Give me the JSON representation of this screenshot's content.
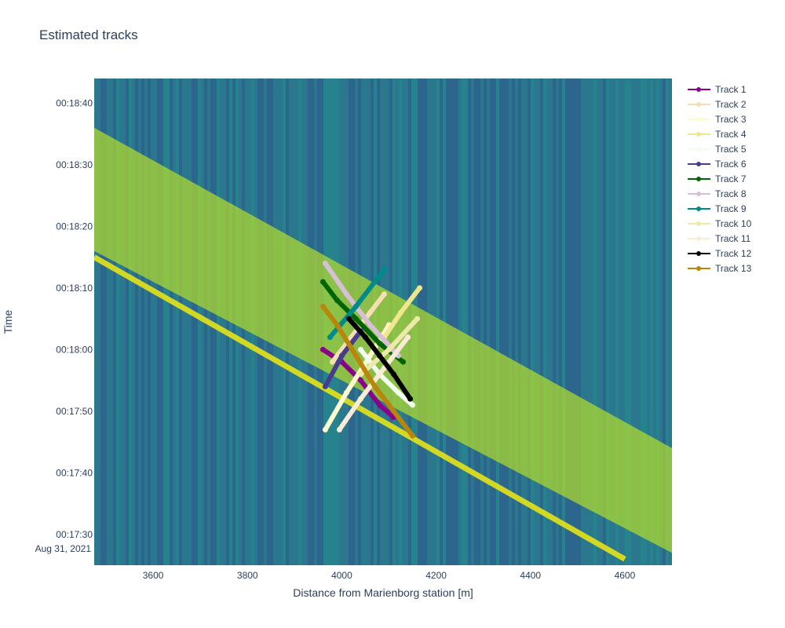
{
  "chart_data": {
    "type": "line",
    "title": "Estimated tracks",
    "xlabel": "Distance from Marienborg station [m]",
    "ylabel": "Time",
    "xlim": [
      3475,
      4700
    ],
    "ylim": [
      "00:17:25",
      "00:18:44"
    ],
    "x_ticks": [
      3600,
      3800,
      4000,
      4200,
      4400,
      4600
    ],
    "y_ticks": [
      "00:17:30",
      "00:17:40",
      "00:17:50",
      "00:18:00",
      "00:18:10",
      "00:18:20",
      "00:18:30",
      "00:18:40"
    ],
    "y_date_label": "Aug 31, 2021",
    "legend_position": "top-right",
    "background": "heatmap",
    "colorscale": [
      "#2e5e8a",
      "#2a7d8c",
      "#21918c",
      "#5ec962",
      "#b5de2b",
      "#e6e418"
    ],
    "background_bands": [
      {
        "name": "bright line",
        "x": [
          3475,
          4600
        ],
        "y": [
          "00:18:15",
          "00:17:26"
        ]
      },
      {
        "name": "upper band top edge",
        "x": [
          3475,
          4700
        ],
        "y": [
          "00:18:36",
          "00:17:44"
        ]
      },
      {
        "name": "upper band bottom edge",
        "x": [
          3475,
          4700
        ],
        "y": [
          "00:18:16",
          "00:17:27"
        ]
      }
    ],
    "series": [
      {
        "name": "Track 1",
        "color": "#8b008b",
        "x": [
          3960,
          4000,
          4040,
          4080,
          4110
        ],
        "y": [
          "00:18:00",
          "00:17:58",
          "00:17:55",
          "00:17:51",
          "00:17:49"
        ]
      },
      {
        "name": "Track 2",
        "color": "#f5deb3",
        "x": [
          3980,
          4020,
          4060,
          4090
        ],
        "y": [
          "00:17:58",
          "00:18:02",
          "00:18:06",
          "00:18:09"
        ]
      },
      {
        "name": "Track 3",
        "color": "#fffacd",
        "x": [
          3965,
          4010,
          4060,
          4100
        ],
        "y": [
          "00:17:47",
          "00:17:53",
          "00:17:59",
          "00:18:04"
        ]
      },
      {
        "name": "Track 4",
        "color": "#f0e68c",
        "x": [
          4090,
          4125,
          4165
        ],
        "y": [
          "00:18:02",
          "00:18:06",
          "00:18:10"
        ]
      },
      {
        "name": "Track 5",
        "color": "#f0fff0",
        "x": [
          4040,
          4080,
          4120,
          4150
        ],
        "y": [
          "00:18:00",
          "00:17:56",
          "00:17:53",
          "00:17:51"
        ]
      },
      {
        "name": "Track 6",
        "color": "#483d8b",
        "x": [
          3965,
          4000,
          4040
        ],
        "y": [
          "00:17:54",
          "00:17:59",
          "00:18:03"
        ]
      },
      {
        "name": "Track 7",
        "color": "#006400",
        "x": [
          3960,
          3990,
          4030,
          4080,
          4130
        ],
        "y": [
          "00:18:11",
          "00:18:08",
          "00:18:05",
          "00:18:01",
          "00:17:58"
        ]
      },
      {
        "name": "Track 8",
        "color": "#d8bfd8",
        "x": [
          3965,
          4010,
          4060,
          4120
        ],
        "y": [
          "00:18:14",
          "00:18:09",
          "00:18:04",
          "00:17:59"
        ]
      },
      {
        "name": "Track 9",
        "color": "#008b8b",
        "x": [
          3975,
          4030,
          4090
        ],
        "y": [
          "00:18:02",
          "00:18:07",
          "00:18:13"
        ]
      },
      {
        "name": "Track 10",
        "color": "#eee8aa",
        "x": [
          4040,
          4100,
          4160
        ],
        "y": [
          "00:17:56",
          "00:18:00",
          "00:18:05"
        ]
      },
      {
        "name": "Track 11",
        "color": "#faebd7",
        "x": [
          3995,
          4040,
          4090,
          4140
        ],
        "y": [
          "00:17:47",
          "00:17:52",
          "00:17:57",
          "00:18:02"
        ]
      },
      {
        "name": "Track 12",
        "color": "#000000",
        "x": [
          4015,
          4050,
          4080,
          4110,
          4145
        ],
        "y": [
          "00:18:05",
          "00:18:02",
          "00:17:59",
          "00:17:56",
          "00:17:52"
        ]
      },
      {
        "name": "Track 13",
        "color": "#b8860b",
        "x": [
          3960,
          3990,
          4030,
          4070,
          4110,
          4150
        ],
        "y": [
          "00:18:07",
          "00:18:04",
          "00:17:59",
          "00:17:54",
          "00:17:50",
          "00:17:46"
        ]
      }
    ]
  }
}
